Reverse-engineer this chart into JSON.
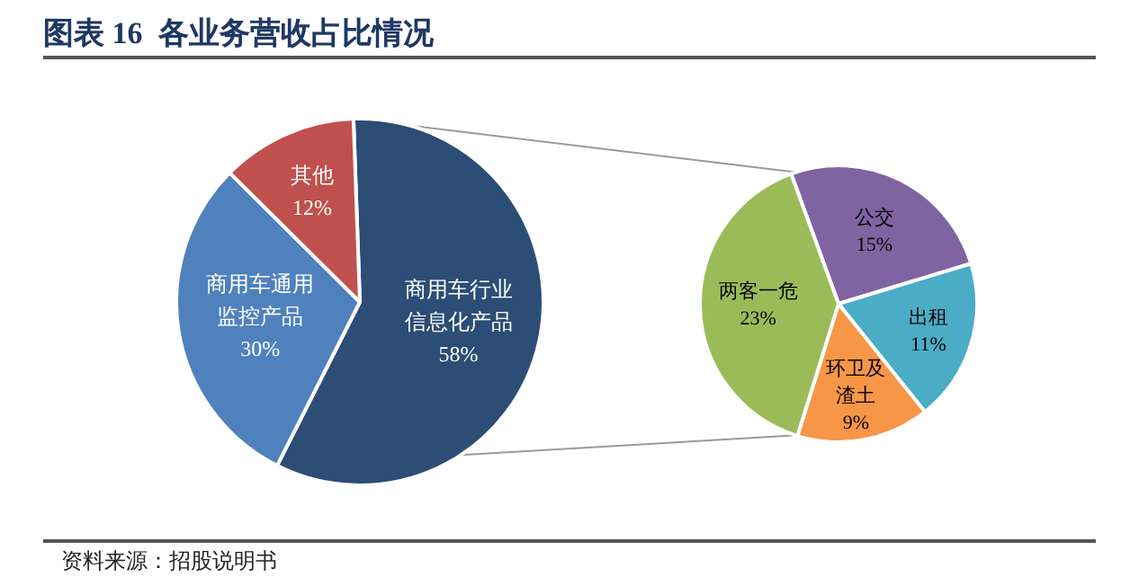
{
  "chart_data": [
    {
      "type": "pie",
      "title": "图表 16  各业务营收占比情况",
      "categories": [
        "商用车行业信息化产品",
        "商用车通用监控产品",
        "其他"
      ],
      "values": [
        58,
        30,
        12
      ],
      "colors": [
        "#2c4d75",
        "#4f81bd",
        "#c0504d"
      ],
      "value_labels": [
        "58%",
        "30%",
        "12%"
      ],
      "annotations": [
        "资料来源：招股说明书"
      ]
    },
    {
      "type": "pie",
      "categories": [
        "公交",
        "出租",
        "环卫及渣土",
        "两客一危"
      ],
      "values": [
        15,
        11,
        9,
        23
      ],
      "colors": [
        "#8064a2",
        "#4bacc6",
        "#f79646",
        "#9bbb59"
      ],
      "value_labels": [
        "15%",
        "11%",
        "9%",
        "23%"
      ]
    }
  ]
}
